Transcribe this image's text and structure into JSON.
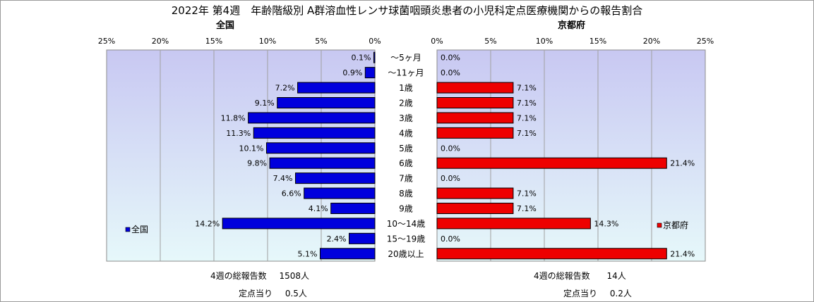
{
  "title": "2022年 第4週　年齢階級別 A群溶血性レンサ球菌咽頭炎患者の小児科定点医療機関からの報告割合",
  "chart_data": [
    {
      "type": "bar",
      "orientation": "horizontal",
      "x_direction": "reversed",
      "title": "全国",
      "legend": "全国",
      "legend_placement": "bottom-left",
      "color": "#0000dd",
      "xlim": [
        0,
        25
      ],
      "ticks": [
        "25%",
        "20%",
        "15%",
        "10%",
        "5%",
        "0%"
      ],
      "categories": [
        "～5ヶ月",
        "～11ヶ月",
        "1歳",
        "2歳",
        "3歳",
        "4歳",
        "5歳",
        "6歳",
        "7歳",
        "8歳",
        "9歳",
        "10～14歳",
        "15～19歳",
        "20歳以上"
      ],
      "values": [
        0.1,
        0.9,
        7.2,
        9.1,
        11.8,
        11.3,
        10.1,
        9.8,
        7.4,
        6.6,
        4.1,
        14.2,
        2.4,
        5.1
      ],
      "labels": [
        "0.1%",
        "0.9%",
        "7.2%",
        "9.1%",
        "11.8%",
        "11.3%",
        "10.1%",
        "9.8%",
        "7.4%",
        "6.6%",
        "4.1%",
        "14.2%",
        "2.4%",
        "5.1%"
      ]
    },
    {
      "type": "bar",
      "orientation": "horizontal",
      "title": "京都府",
      "legend": "京都府",
      "legend_placement": "bottom-right",
      "color": "#ee0000",
      "xlim": [
        0,
        25
      ],
      "ticks": [
        "0%",
        "5%",
        "10%",
        "15%",
        "20%",
        "25%"
      ],
      "categories": [
        "～5ヶ月",
        "～11ヶ月",
        "1歳",
        "2歳",
        "3歳",
        "4歳",
        "5歳",
        "6歳",
        "7歳",
        "8歳",
        "9歳",
        "10～14歳",
        "15～19歳",
        "20歳以上"
      ],
      "values": [
        0.0,
        0.0,
        7.1,
        7.1,
        7.1,
        7.1,
        0.0,
        21.4,
        0.0,
        7.1,
        7.1,
        14.3,
        0.0,
        21.4
      ],
      "labels": [
        "0.0%",
        "0.0%",
        "7.1%",
        "7.1%",
        "7.1%",
        "7.1%",
        "0.0%",
        "21.4%",
        "0.0%",
        "7.1%",
        "7.1%",
        "14.3%",
        "0.0%",
        "21.4%"
      ]
    }
  ],
  "summary": {
    "national": {
      "total_label": "4週の総報告数",
      "total_value": "1508人",
      "per_label": "定点当り",
      "per_value": "0.5人"
    },
    "kyoto": {
      "total_label": "4週の総報告数",
      "total_value": "14人",
      "per_label": "定点当り",
      "per_value": "0.2人"
    }
  },
  "colors": {
    "plot_bg_top": "#c8c8f2",
    "plot_bg_bottom": "#e6f8fa",
    "grid": "#a0a0a0"
  }
}
